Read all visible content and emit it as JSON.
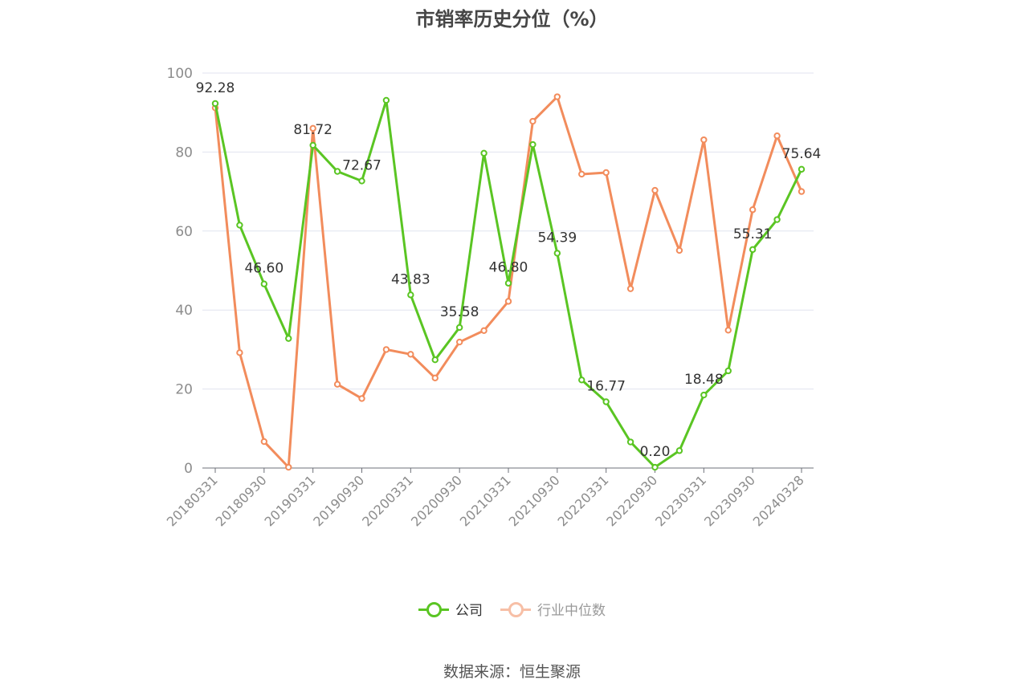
{
  "chart_data": {
    "type": "line",
    "title": "市销率历史分位（%）",
    "ylim": [
      0,
      100
    ],
    "yticks": [
      0,
      20,
      40,
      60,
      80,
      100
    ],
    "grid": true,
    "legend_position": "bottom",
    "x": [
      "20180331",
      "20180630",
      "20180930",
      "20181231",
      "20190331",
      "20190630",
      "20190930",
      "20191231",
      "20200331",
      "20200630",
      "20200930",
      "20201231",
      "20210331",
      "20210630",
      "20210930",
      "20211231",
      "20220331",
      "20220630",
      "20220930",
      "20221231",
      "20230331",
      "20230630",
      "20230930",
      "20231231",
      "20240328"
    ],
    "xtick_labels": [
      "20180331",
      "20180930",
      "20190331",
      "20190930",
      "20200331",
      "20200930",
      "20210331",
      "20210930",
      "20220331",
      "20220930",
      "20230331",
      "20230930",
      "20240328"
    ],
    "series": [
      {
        "name": "公司",
        "color": "#5ac523",
        "values": [
          92.28,
          61.5,
          46.6,
          32.8,
          81.72,
          75.1,
          72.67,
          93.1,
          43.83,
          27.4,
          35.58,
          79.7,
          46.8,
          81.9,
          54.39,
          22.3,
          16.77,
          6.6,
          0.2,
          4.4,
          18.48,
          24.6,
          55.31,
          62.9,
          75.64
        ],
        "labels": [
          "92.28",
          "",
          "46.60",
          "",
          "81.72",
          "",
          "72.67",
          "",
          "43.83",
          "",
          "35.58",
          "",
          "46.80",
          "",
          "54.39",
          "",
          "16.77",
          "",
          "0.20",
          "",
          "18.48",
          "",
          "55.31",
          "",
          "75.64"
        ]
      },
      {
        "name": "行业中位数",
        "color": "#f28c5c",
        "values": [
          91.2,
          29.2,
          6.7,
          0.2,
          86.0,
          21.2,
          17.6,
          30.0,
          28.8,
          22.8,
          31.9,
          34.8,
          42.2,
          87.8,
          94.0,
          74.4,
          74.8,
          45.4,
          70.3,
          55.1,
          83.1,
          34.9,
          65.4,
          84.1,
          70.0
        ],
        "labels": []
      }
    ]
  },
  "legend": {
    "items": [
      {
        "label": "公司",
        "color": "#5ac523",
        "state": "active"
      },
      {
        "label": "行业中位数",
        "color": "#f7bfa6",
        "state": "inactive"
      }
    ]
  },
  "source": "数据来源：恒生聚源"
}
